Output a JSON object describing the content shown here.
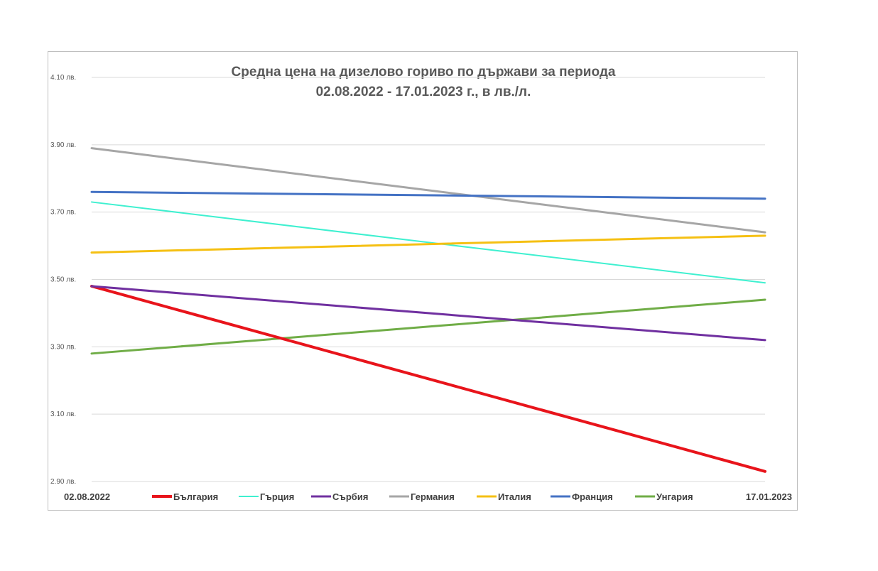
{
  "chart_data": {
    "type": "line",
    "title_lines": [
      "Средна цена на дизелово гориво по държави за периода",
      "02.08.2022 - 17.01.2023 г., в лв./л."
    ],
    "x": [
      "02.08.2022",
      "17.01.2023"
    ],
    "y_ticks": [
      "4.10 лв.",
      "3.90 лв.",
      "3.70 лв.",
      "3.50 лв.",
      "3.30 лв.",
      "3.10 лв.",
      "2.90 лв."
    ],
    "y_tick_values": [
      4.1,
      3.9,
      3.7,
      3.5,
      3.3,
      3.1,
      2.9
    ],
    "ylim": [
      2.9,
      4.1
    ],
    "grid": true,
    "legend_position": "bottom",
    "series": [
      {
        "name": "България",
        "values": [
          3.48,
          2.93
        ],
        "color": "#e8141b",
        "width": 4
      },
      {
        "name": "Гърция",
        "values": [
          3.73,
          3.49
        ],
        "color": "#3ff0d0",
        "width": 2
      },
      {
        "name": "Сърбия",
        "values": [
          3.48,
          3.32
        ],
        "color": "#7030a0",
        "width": 3
      },
      {
        "name": "Германия",
        "values": [
          3.89,
          3.64
        ],
        "color": "#a6a6a6",
        "width": 3
      },
      {
        "name": "Италия",
        "values": [
          3.58,
          3.63
        ],
        "color": "#f5c013",
        "width": 3
      },
      {
        "name": "Франция",
        "values": [
          3.76,
          3.74
        ],
        "color": "#4472c4",
        "width": 3
      },
      {
        "name": "Унгария",
        "values": [
          3.28,
          3.44
        ],
        "color": "#70ad47",
        "width": 3
      }
    ]
  }
}
